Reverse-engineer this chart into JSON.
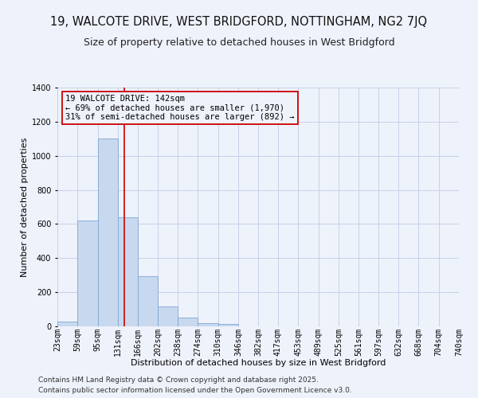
{
  "title": "19, WALCOTE DRIVE, WEST BRIDGFORD, NOTTINGHAM, NG2 7JQ",
  "subtitle": "Size of property relative to detached houses in West Bridgford",
  "bar_values": [
    30,
    620,
    1100,
    640,
    295,
    115,
    50,
    20,
    15,
    0,
    0,
    0,
    0,
    0,
    0,
    0,
    0,
    0,
    0,
    0
  ],
  "bin_edges": [
    23,
    59,
    95,
    131,
    166,
    202,
    238,
    274,
    310,
    346,
    382,
    417,
    453,
    489,
    525,
    561,
    597,
    632,
    668,
    704,
    740
  ],
  "tick_labels": [
    "23sqm",
    "59sqm",
    "95sqm",
    "131sqm",
    "166sqm",
    "202sqm",
    "238sqm",
    "274sqm",
    "310sqm",
    "346sqm",
    "382sqm",
    "417sqm",
    "453sqm",
    "489sqm",
    "525sqm",
    "561sqm",
    "597sqm",
    "632sqm",
    "668sqm",
    "704sqm",
    "740sqm"
  ],
  "bar_color": "#c8d9ef",
  "bar_edge_color": "#7ea6d3",
  "property_line_x": 142,
  "property_line_color": "#cc0000",
  "annotation_box_edge_color": "#cc0000",
  "annotation_line1": "19 WALCOTE DRIVE: 142sqm",
  "annotation_line2": "← 69% of detached houses are smaller (1,970)",
  "annotation_line3": "31% of semi-detached houses are larger (892) →",
  "xlabel": "Distribution of detached houses by size in West Bridgford",
  "ylabel": "Number of detached properties",
  "ylim": [
    0,
    1400
  ],
  "yticks": [
    0,
    200,
    400,
    600,
    800,
    1000,
    1200,
    1400
  ],
  "footnote1": "Contains HM Land Registry data © Crown copyright and database right 2025.",
  "footnote2": "Contains public sector information licensed under the Open Government Licence v3.0.",
  "background_color": "#eef2fb",
  "grid_color": "#c8d0e8",
  "title_fontsize": 10.5,
  "subtitle_fontsize": 9,
  "axis_label_fontsize": 8,
  "tick_fontsize": 7,
  "annotation_fontsize": 7.5,
  "footnote_fontsize": 6.5
}
